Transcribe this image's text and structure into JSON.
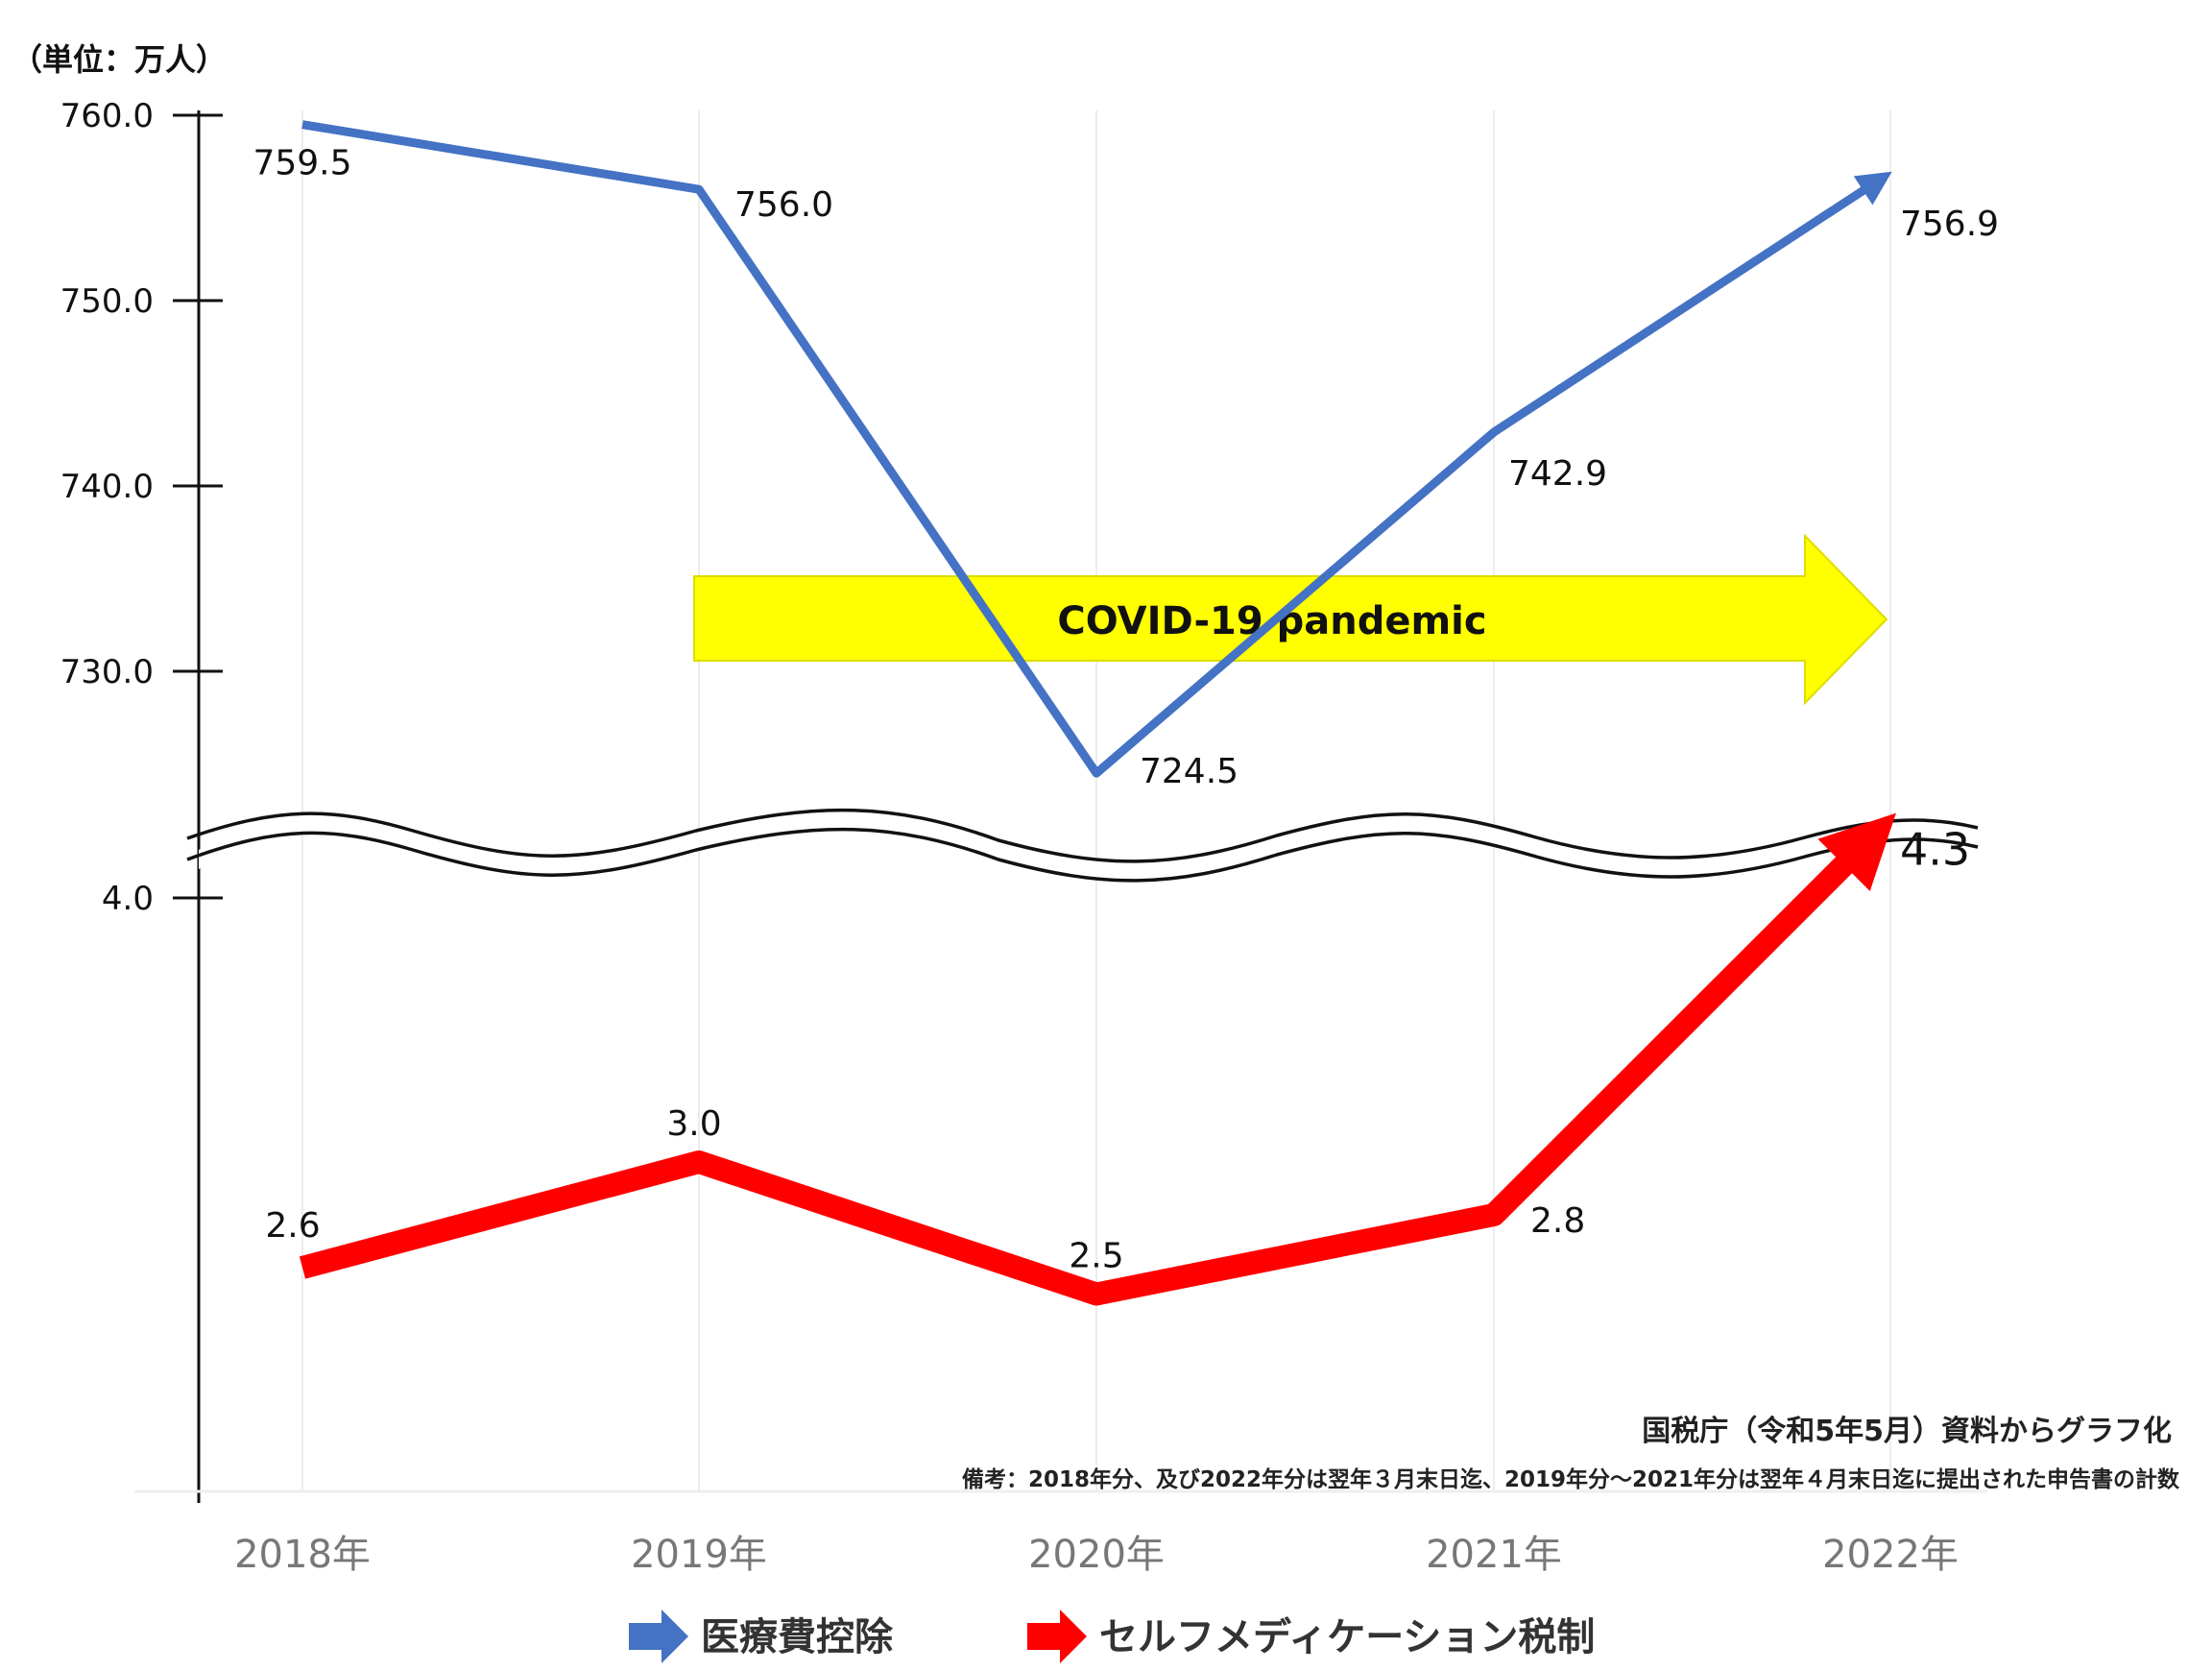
{
  "chart_data": {
    "type": "line",
    "unit_label": "（単位：万人）",
    "categories": [
      "2018年",
      "2019年",
      "2020年",
      "2021年",
      "2022年"
    ],
    "axis_break": true,
    "upper_axis": {
      "ylim": [
        722,
        760
      ],
      "ticks": [
        "760.0",
        "750.0",
        "740.0",
        "730.0"
      ]
    },
    "lower_axis": {
      "ylim": [
        2.0,
        4.0
      ],
      "ticks": [
        "4.0"
      ]
    },
    "series": [
      {
        "name": "医療費控除",
        "color": "#4472c4",
        "values": [
          759.5,
          756.0,
          724.5,
          742.9,
          756.9
        ],
        "labels": [
          "759.5",
          "756.0",
          "724.5",
          "742.9",
          "756.9"
        ]
      },
      {
        "name": "セルフメディケーション税制",
        "color": "#ff0000",
        "values": [
          2.6,
          3.0,
          2.5,
          2.8,
          4.3
        ],
        "labels": [
          "2.6",
          "3.0",
          "2.5",
          "2.8",
          "4.3"
        ]
      }
    ],
    "annotation": {
      "text": "COVID-19 pandemic",
      "color": "#ffff00"
    },
    "source": "国税庁（令和5年5月）資料からグラフ化",
    "note": "備考：2018年分、及び2022年分は翌年３月末日迄、2019年分～2021年分は翌年４月末日迄に提出された申告書の計数",
    "legend_position": "bottom",
    "grid": "vertical"
  }
}
